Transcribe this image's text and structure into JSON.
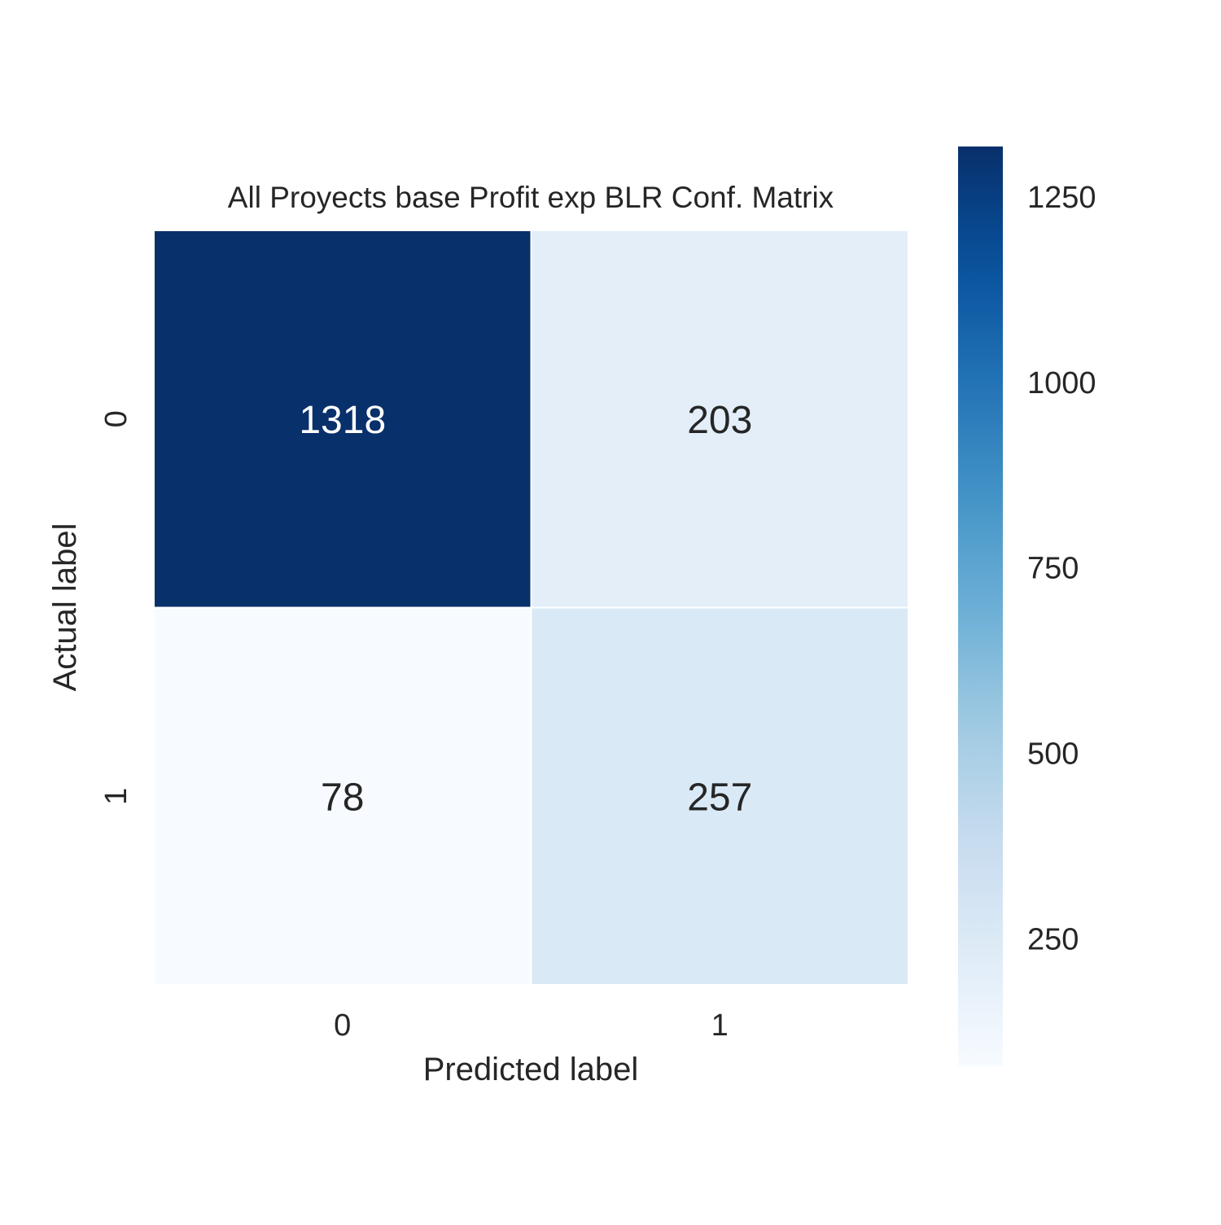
{
  "chart_data": {
    "type": "heatmap",
    "title": "All Proyects base Profit exp BLR Conf. Matrix",
    "xlabel": "Predicted label",
    "ylabel": "Actual label",
    "x_categories": [
      "0",
      "1"
    ],
    "y_categories": [
      "0",
      "1"
    ],
    "values": [
      [
        1318,
        203
      ],
      [
        78,
        257
      ]
    ],
    "colormap": "Blues",
    "colorbar": {
      "range": [
        78,
        1318
      ],
      "ticks": [
        250,
        500,
        750,
        1000,
        1250
      ],
      "tick_labels": [
        "250",
        "500",
        "750",
        "1000",
        "1250"
      ]
    },
    "grid": false,
    "legend": "colorbar-right"
  }
}
